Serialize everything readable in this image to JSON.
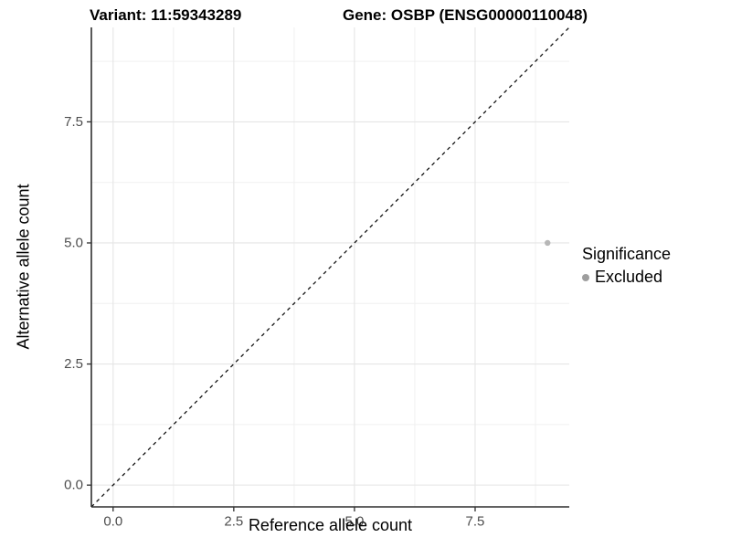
{
  "colors": {
    "background": "#ffffff",
    "axis_line": "#2f2f2f",
    "tick_text": "#4d4d4d",
    "grid_major": "#e5e5e5",
    "grid_minor": "#f0f0f0",
    "title_text": "#000000"
  },
  "chart_data": {
    "type": "scatter",
    "titles": [
      "Variant: 11:59343289",
      "Gene: OSBP (ENSG00000110048)"
    ],
    "xlabel": "Reference allele count",
    "ylabel": "Alternative allele count",
    "xlim": [
      -0.45,
      9.45
    ],
    "ylim": [
      -0.45,
      9.45
    ],
    "x_ticks": {
      "values": [
        0,
        2.5,
        5,
        7.5
      ],
      "labels": [
        "0.0",
        "2.5",
        "5.0",
        "7.5"
      ]
    },
    "y_ticks": {
      "values": [
        0,
        2.5,
        5,
        7.5
      ],
      "labels": [
        "0.0",
        "2.5",
        "5.0",
        "7.5"
      ]
    },
    "grid_minor": [
      1.25,
      3.75,
      6.25,
      8.75
    ],
    "grid_on": true,
    "series": [
      {
        "name": "Excluded",
        "color": "#b7b7b7",
        "points": [
          {
            "x": 9,
            "y": 5
          }
        ]
      }
    ],
    "reference_line": {
      "equation": "y = x",
      "style": "dashed",
      "color": "#141414"
    },
    "legend": {
      "title": "Significance",
      "position": "right",
      "entries": [
        {
          "label": "Excluded",
          "color": "#9e9e9e"
        }
      ]
    }
  }
}
